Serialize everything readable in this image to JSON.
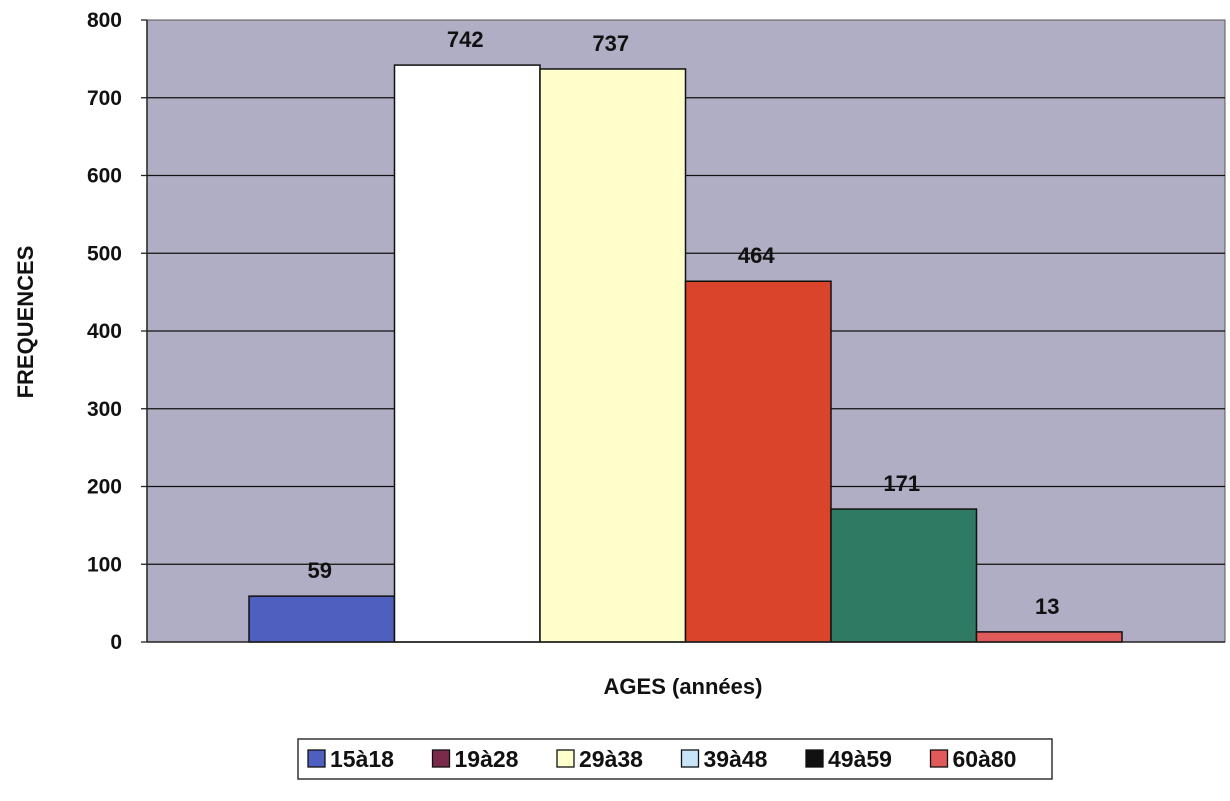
{
  "chart_data": {
    "type": "bar",
    "categories": [
      "15à18",
      "19à28",
      "29à38",
      "39à48",
      "49à59",
      "60à80"
    ],
    "values": [
      59,
      742,
      737,
      464,
      171,
      13
    ],
    "data_labels": [
      "59",
      "742",
      "737",
      "464",
      "171",
      "13"
    ],
    "bar_colors": [
      "#4f5fbf",
      "#ffffff",
      "#ffffcc",
      "#d9442a",
      "#2e7a62",
      "#e05a5a"
    ],
    "legend_swatch_colors": [
      "#4f5fbf",
      "#7a2a4a",
      "#ffffcc",
      "#c8e4f8",
      "#111111",
      "#e05a5a"
    ],
    "title": "",
    "xlabel": "AGES (années)",
    "ylabel": "FREQUENCES",
    "ylim": [
      0,
      800
    ],
    "yticks": [
      "0",
      "100",
      "200",
      "300",
      "400",
      "500",
      "600",
      "700",
      "800"
    ],
    "grid": true,
    "legend_position": "bottom",
    "plot_background": "#b0aec4"
  }
}
